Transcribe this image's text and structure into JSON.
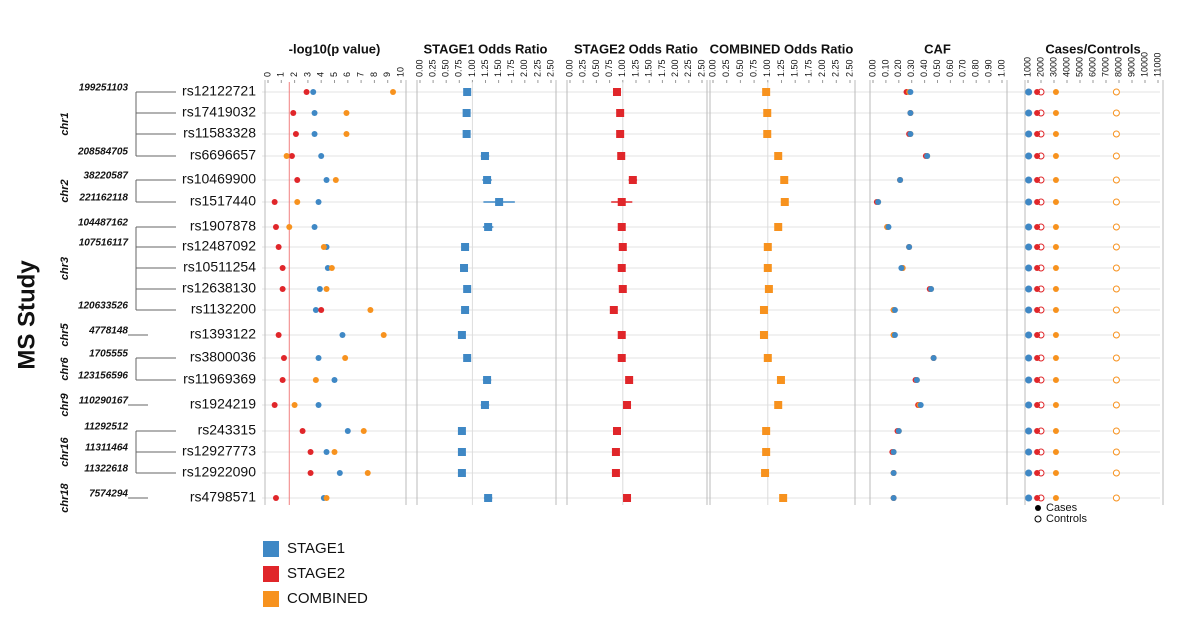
{
  "title": "MS Study",
  "snps": [
    "rs12122721",
    "rs17419032",
    "rs11583328",
    "rs6696657",
    "rs10469900",
    "rs1517440",
    "rs1907878",
    "rs12487092",
    "rs10511254",
    "rs12638130",
    "rs1132200",
    "rs1393122",
    "rs3800036",
    "rs11969369",
    "rs1924219",
    "rs243315",
    "rs12927773",
    "rs12922090",
    "rs4798571"
  ],
  "chromosome_groups": [
    {
      "chromosome": "chr1",
      "positions": [
        "199251103",
        "208584705"
      ]
    },
    {
      "chromosome": "chr2",
      "positions": [
        "38220587",
        "221162118"
      ]
    },
    {
      "chromosome": "chr3",
      "positions": [
        "104487162",
        "107516117",
        "120633526"
      ]
    },
    {
      "chromosome": "chr5",
      "positions": [
        "4778148"
      ]
    },
    {
      "chromosome": "chr6",
      "positions": [
        "1705555",
        "123156596"
      ]
    },
    {
      "chromosome": "chr9",
      "positions": [
        "110290167"
      ]
    },
    {
      "chromosome": "chr16",
      "positions": [
        "11292512",
        "11311464",
        "11322618"
      ]
    },
    {
      "chromosome": "chr18",
      "positions": [
        "7574294"
      ]
    }
  ],
  "chart_data": [
    {
      "type": "dot",
      "title": "-log10(p value)",
      "xlim": [
        0,
        10
      ],
      "xticks": [
        0,
        1,
        2,
        3,
        4,
        5,
        6,
        7,
        8,
        9,
        10
      ],
      "threshold": 1.6,
      "threshold_color": "#f08080",
      "series": [
        {
          "name": "STAGE1",
          "color": "#3f88c5",
          "values": [
            3.4,
            3.5,
            3.5,
            4.0,
            4.4,
            3.8,
            3.5,
            4.4,
            4.5,
            3.9,
            3.6,
            5.6,
            3.8,
            5.0,
            3.8,
            6.0,
            4.4,
            5.4,
            4.2
          ]
        },
        {
          "name": "STAGE2",
          "color": "#e0262a",
          "values": [
            2.9,
            1.9,
            2.1,
            1.8,
            2.2,
            0.5,
            0.6,
            0.8,
            1.1,
            1.1,
            4.0,
            0.8,
            1.2,
            1.1,
            0.5,
            2.6,
            3.2,
            3.2,
            0.6
          ]
        },
        {
          "name": "COMBINED",
          "color": "#f7921e",
          "values": [
            9.4,
            5.9,
            5.9,
            1.4,
            5.1,
            2.2,
            1.6,
            4.2,
            4.8,
            4.4,
            7.7,
            8.7,
            5.8,
            3.6,
            2.0,
            7.2,
            5.0,
            7.5,
            4.4
          ]
        }
      ]
    },
    {
      "type": "or",
      "title": "STAGE1 Odds Ratio",
      "xlim": [
        0,
        2.5
      ],
      "reference": 1,
      "xticks": [
        {
          "value": 0,
          "label": "0.00"
        },
        {
          "value": 0.25,
          "label": "0.25"
        },
        {
          "value": 0.5,
          "label": "0.50"
        },
        {
          "value": 0.75,
          "label": "0.75"
        },
        {
          "value": 1,
          "label": "1.00"
        },
        {
          "value": 1.25,
          "label": "1.25"
        },
        {
          "value": 1.5,
          "label": "1.50"
        },
        {
          "value": 1.75,
          "label": "1.75"
        },
        {
          "value": 2,
          "label": "2.00"
        },
        {
          "value": 2.25,
          "label": "2.25"
        },
        {
          "value": 2.5,
          "label": "2.50"
        }
      ],
      "series": [
        {
          "name": "STAGE1",
          "color": "#3f88c5",
          "values": [
            0.9,
            0.89,
            0.89,
            1.24,
            1.28,
            1.51,
            1.3,
            0.86,
            0.84,
            0.9,
            0.86,
            0.8,
            0.9,
            1.28,
            1.24,
            0.8,
            0.8,
            0.8,
            1.3
          ],
          "errors": [
            0.04,
            0.04,
            0.04,
            0.08,
            0.09,
            0.3,
            0.1,
            0.05,
            0.05,
            0.05,
            0.05,
            0.05,
            0.05,
            0.08,
            0.08,
            0.05,
            0.05,
            0.05,
            0.08
          ]
        }
      ]
    },
    {
      "type": "or",
      "title": "STAGE2 Odds Ratio",
      "xlim": [
        0,
        2.5
      ],
      "reference": 1,
      "xticks": [
        {
          "value": 0,
          "label": "0.00"
        },
        {
          "value": 0.25,
          "label": "0.25"
        },
        {
          "value": 0.5,
          "label": "0.50"
        },
        {
          "value": 0.75,
          "label": "0.75"
        },
        {
          "value": 1,
          "label": "1.00"
        },
        {
          "value": 1.25,
          "label": "1.25"
        },
        {
          "value": 1.5,
          "label": "1.50"
        },
        {
          "value": 1.75,
          "label": "1.75"
        },
        {
          "value": 2,
          "label": "2.00"
        },
        {
          "value": 2.25,
          "label": "2.25"
        },
        {
          "value": 2.5,
          "label": "2.50"
        }
      ],
      "series": [
        {
          "name": "STAGE2",
          "color": "#e0262a",
          "values": [
            0.89,
            0.95,
            0.95,
            0.97,
            1.19,
            0.98,
            0.98,
            1.0,
            0.98,
            1.0,
            0.83,
            0.98,
            0.98,
            1.12,
            1.08,
            0.89,
            0.87,
            0.87,
            1.08
          ],
          "errors": [
            0.05,
            0.05,
            0.05,
            0.05,
            0.08,
            0.2,
            0.06,
            0.05,
            0.05,
            0.05,
            0.05,
            0.06,
            0.05,
            0.07,
            0.06,
            0.05,
            0.05,
            0.05,
            0.07
          ]
        }
      ]
    },
    {
      "type": "or",
      "title": "COMBINED Odds Ratio",
      "xlim": [
        0,
        2.5
      ],
      "reference": 1,
      "xticks": [
        {
          "value": 0,
          "label": "0.00"
        },
        {
          "value": 0.25,
          "label": "0.25"
        },
        {
          "value": 0.5,
          "label": "0.50"
        },
        {
          "value": 0.75,
          "label": "0.75"
        },
        {
          "value": 1,
          "label": "1.00"
        },
        {
          "value": 1.25,
          "label": "1.25"
        },
        {
          "value": 1.5,
          "label": "1.50"
        },
        {
          "value": 1.75,
          "label": "1.75"
        },
        {
          "value": 2,
          "label": "2.00"
        },
        {
          "value": 2.25,
          "label": "2.25"
        },
        {
          "value": 2.5,
          "label": "2.50"
        }
      ],
      "series": [
        {
          "name": "COMBINED",
          "color": "#f7921e",
          "values": [
            0.97,
            0.99,
            0.99,
            1.19,
            1.3,
            1.31,
            1.19,
            1.0,
            1.0,
            1.02,
            0.93,
            0.93,
            1.0,
            1.24,
            1.19,
            0.97,
            0.97,
            0.95,
            1.28
          ]
        }
      ]
    },
    {
      "type": "dot",
      "title": "CAF",
      "xlim": [
        0,
        1
      ],
      "xticks": [
        {
          "value": 0,
          "label": "0.00"
        },
        {
          "value": 0.1,
          "label": "0.10"
        },
        {
          "value": 0.2,
          "label": "0.20"
        },
        {
          "value": 0.3,
          "label": "0.30"
        },
        {
          "value": 0.4,
          "label": "0.40"
        },
        {
          "value": 0.5,
          "label": "0.50"
        },
        {
          "value": 0.6,
          "label": "0.60"
        },
        {
          "value": 0.7,
          "label": "0.70"
        },
        {
          "value": 0.8,
          "label": "0.80"
        },
        {
          "value": 0.9,
          "label": "0.90"
        },
        {
          "value": 1,
          "label": "1.00"
        }
      ],
      "series": [
        {
          "name": "STAGE2",
          "color": "#e0262a",
          "values": [
            0.26,
            0.29,
            0.28,
            0.41,
            0.21,
            0.03,
            0.11,
            0.28,
            0.23,
            0.44,
            0.16,
            0.16,
            0.47,
            0.33,
            0.35,
            0.19,
            0.15,
            0.16,
            0.16
          ]
        },
        {
          "name": "COMBINED",
          "color": "#f7921e",
          "values": [
            0.28,
            0.29,
            0.29,
            0.42,
            0.21,
            0.04,
            0.11,
            0.28,
            0.23,
            0.45,
            0.16,
            0.16,
            0.47,
            0.34,
            0.36,
            0.2,
            0.16,
            0.16,
            0.16
          ]
        },
        {
          "name": "STAGE1",
          "color": "#3f88c5",
          "values": [
            0.29,
            0.29,
            0.29,
            0.42,
            0.21,
            0.04,
            0.12,
            0.28,
            0.22,
            0.45,
            0.17,
            0.17,
            0.47,
            0.34,
            0.37,
            0.2,
            0.16,
            0.16,
            0.16
          ]
        }
      ]
    },
    {
      "type": "counts",
      "title": "Cases/Controls",
      "xlim": [
        1000,
        11000
      ],
      "xticks": [
        1000,
        2000,
        3000,
        4000,
        5000,
        6000,
        7000,
        8000,
        9000,
        10000,
        11000
      ],
      "marker_labels": {
        "cases": "Cases",
        "controls": "Controls"
      },
      "series": [
        {
          "name": "STAGE1",
          "color": "#3f88c5",
          "cases": 1050,
          "controls": 1050
        },
        {
          "name": "STAGE2",
          "color": "#e0262a",
          "cases": 1700,
          "controls": 2000
        },
        {
          "name": "COMBINED",
          "color": "#f7921e",
          "cases": 3150,
          "controls": 7800
        }
      ]
    }
  ]
}
